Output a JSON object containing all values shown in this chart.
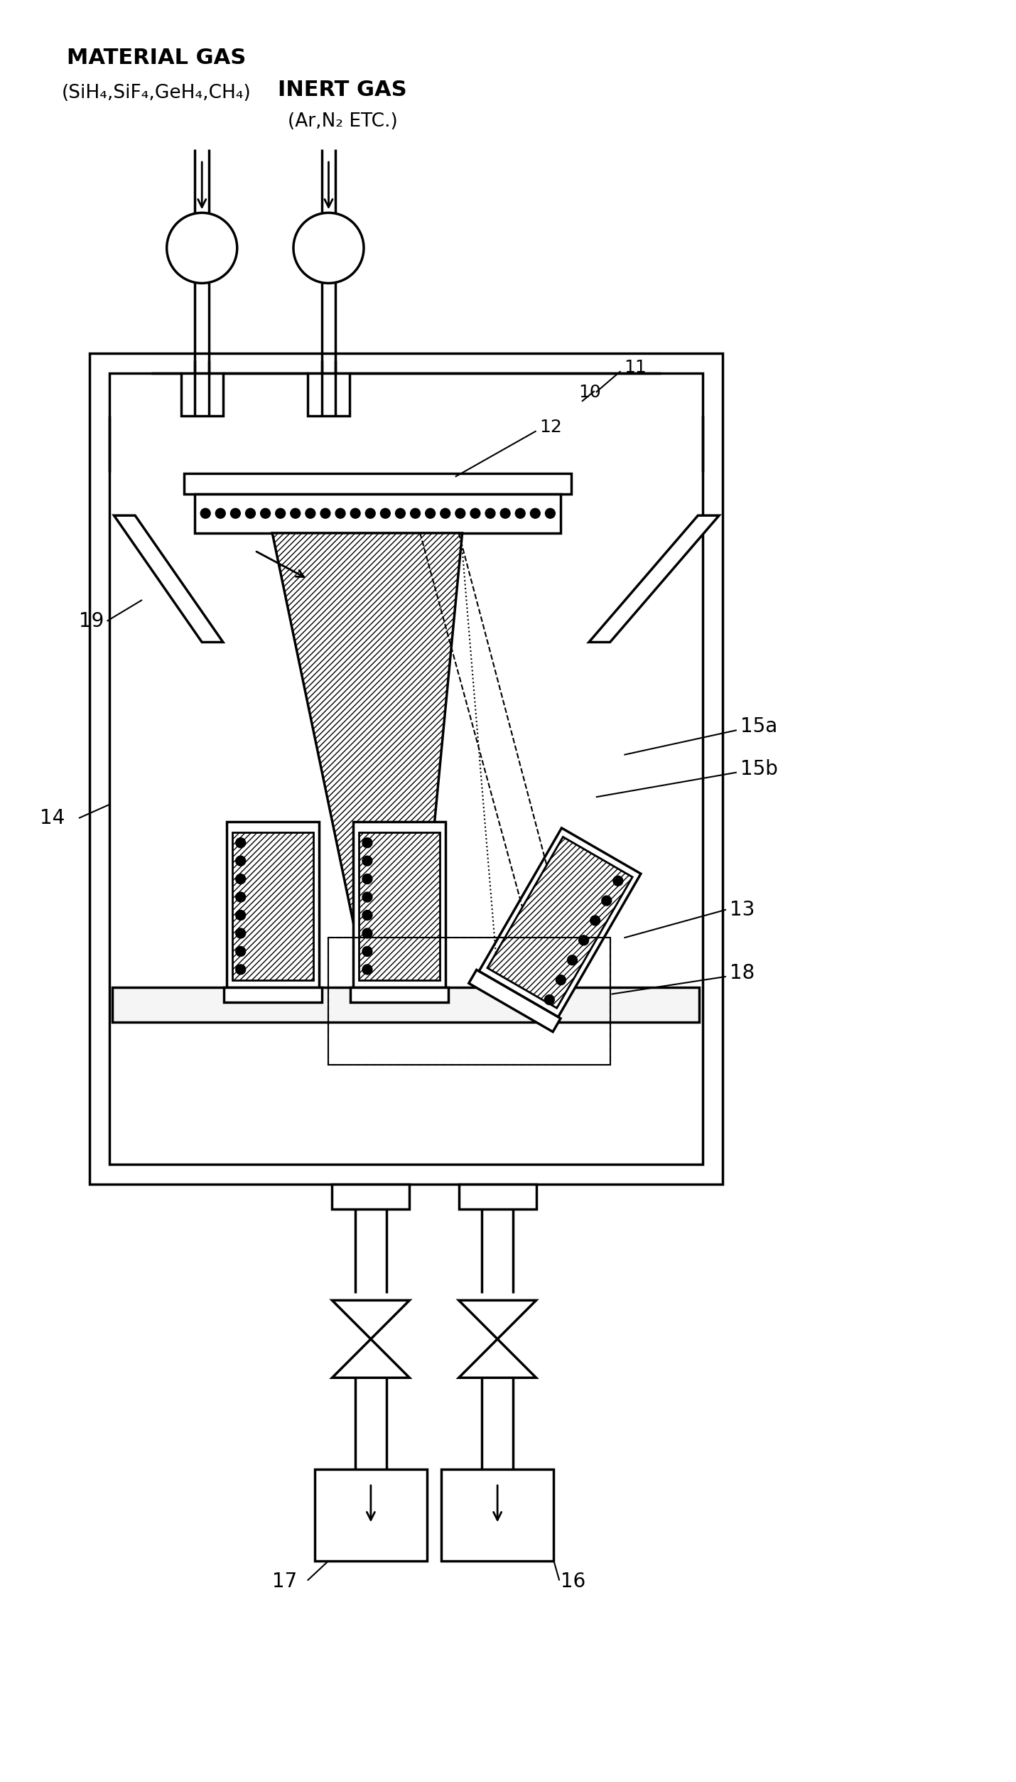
{
  "bg_color": "#ffffff",
  "fig_width": 14.3,
  "fig_height": 25.07,
  "labels": {
    "material_gas": "MATERIAL GAS",
    "material_gas_sub": "(SiH₄,SiF₄,GeH₄,CH₄)",
    "inert_gas": "INERT GAS",
    "inert_gas_sub": "(Ar,N₂ ETC.)",
    "num_10": "10",
    "num_11": "11",
    "num_12": "12",
    "num_13": "13",
    "num_14": "14",
    "num_15a": "15a",
    "num_15b": "15b",
    "num_16": "16",
    "num_17": "17",
    "num_18": "18",
    "num_19": "19"
  }
}
